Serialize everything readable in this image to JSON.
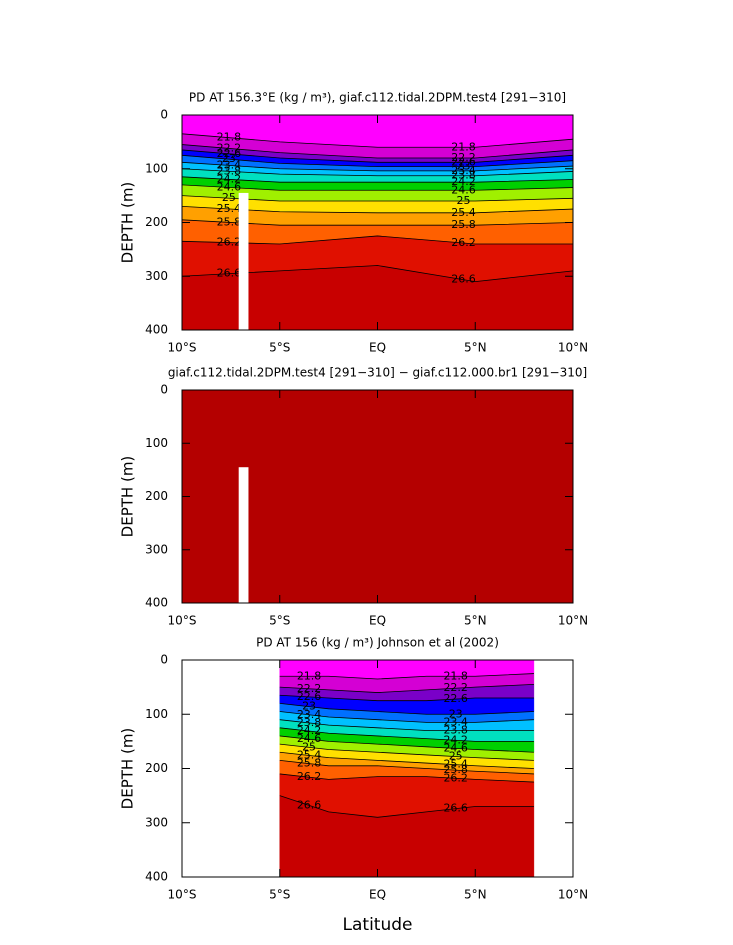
{
  "chart_data": [
    {
      "type": "contour",
      "title": "PD AT 156.3°E (kg / m³), giaf.c112.tidal.2DPM.test4 [291−310]",
      "ylabel": "DEPTH (m)",
      "xlim": [
        -10,
        10
      ],
      "xticks": [
        {
          "value": -10,
          "label": "10°S"
        },
        {
          "value": -5,
          "label": "5°S"
        },
        {
          "value": 0,
          "label": "EQ"
        },
        {
          "value": 5,
          "label": "5°N"
        },
        {
          "value": 10,
          "label": "10°N"
        }
      ],
      "ylim": [
        400,
        0
      ],
      "yticks": [
        0,
        100,
        200,
        300,
        400
      ],
      "x": [
        -10,
        -5,
        0,
        5,
        10
      ],
      "levels": [
        21.8,
        22.2,
        22.6,
        23,
        23.4,
        23.8,
        24.2,
        24.6,
        25,
        25.4,
        25.8,
        26.2,
        26.6
      ],
      "depths": [
        [
          35,
          50,
          60,
          60,
          45
        ],
        [
          55,
          70,
          80,
          80,
          65
        ],
        [
          65,
          80,
          88,
          88,
          75
        ],
        [
          75,
          90,
          96,
          96,
          85
        ],
        [
          88,
          100,
          104,
          104,
          95
        ],
        [
          100,
          110,
          113,
          113,
          105
        ],
        [
          115,
          125,
          125,
          125,
          120
        ],
        [
          130,
          140,
          140,
          140,
          135
        ],
        [
          150,
          160,
          160,
          160,
          155
        ],
        [
          170,
          180,
          182,
          182,
          175
        ],
        [
          195,
          205,
          205,
          205,
          200
        ],
        [
          235,
          240,
          225,
          240,
          240
        ],
        [
          300,
          290,
          280,
          310,
          290
        ]
      ],
      "colors": [
        "#ff00ff",
        "#d400d4",
        "#7a00c8",
        "#0000ff",
        "#0070ff",
        "#00c0ff",
        "#00e0c0",
        "#00d000",
        "#a0f000",
        "#ffe000",
        "#ffa000",
        "#ff6000",
        "#e01000",
        "#c80000"
      ],
      "missing": {
        "x": [
          -7.1,
          -6.6
        ],
        "depth": [
          145,
          400
        ]
      }
    },
    {
      "type": "contour",
      "title": "giaf.c112.tidal.2DPM.test4 [291−310] − giaf.c112.000.br1 [291−310]",
      "ylabel": "DEPTH (m)",
      "xlim": [
        -10,
        10
      ],
      "xticks": [
        {
          "value": -10,
          "label": "10°S"
        },
        {
          "value": -5,
          "label": "5°S"
        },
        {
          "value": 0,
          "label": "EQ"
        },
        {
          "value": 5,
          "label": "5°N"
        },
        {
          "value": 10,
          "label": "10°N"
        }
      ],
      "ylim": [
        400,
        0
      ],
      "yticks": [
        0,
        100,
        200,
        300,
        400
      ],
      "x": [
        -10,
        10
      ],
      "levels": [],
      "depths": [],
      "colors": [
        "#b40000"
      ],
      "missing": {
        "x": [
          -7.1,
          -6.6
        ],
        "depth": [
          145,
          400
        ]
      }
    },
    {
      "type": "contour",
      "title": "PD AT 156 (kg / m³) Johnson et al (2002)",
      "ylabel": "DEPTH (m)",
      "xlabel": "Latitude",
      "xlim": [
        -10,
        10
      ],
      "xticks": [
        {
          "value": -10,
          "label": "10°S"
        },
        {
          "value": -5,
          "label": "5°S"
        },
        {
          "value": 0,
          "label": "EQ"
        },
        {
          "value": 5,
          "label": "5°N"
        },
        {
          "value": 10,
          "label": "10°N"
        }
      ],
      "ylim": [
        400,
        0
      ],
      "yticks": [
        0,
        100,
        200,
        300,
        400
      ],
      "x": [
        -5,
        -2.5,
        0,
        2.5,
        5,
        8
      ],
      "levels": [
        21.8,
        22.2,
        22.6,
        23,
        23.4,
        23.8,
        24.2,
        24.6,
        25,
        25.4,
        25.8,
        26.2,
        26.6
      ],
      "depths": [
        [
          30,
          30,
          35,
          30,
          30,
          25
        ],
        [
          50,
          55,
          60,
          55,
          50,
          45
        ],
        [
          65,
          70,
          75,
          75,
          70,
          70
        ],
        [
          80,
          90,
          95,
          100,
          100,
          95
        ],
        [
          95,
          105,
          110,
          115,
          115,
          110
        ],
        [
          110,
          120,
          125,
          130,
          130,
          130
        ],
        [
          125,
          135,
          140,
          145,
          150,
          150
        ],
        [
          140,
          150,
          155,
          160,
          165,
          170
        ],
        [
          155,
          165,
          170,
          175,
          180,
          185
        ],
        [
          170,
          180,
          185,
          190,
          195,
          200
        ],
        [
          185,
          195,
          195,
          200,
          205,
          210
        ],
        [
          210,
          220,
          215,
          215,
          220,
          225
        ],
        [
          250,
          280,
          290,
          280,
          270,
          270
        ]
      ],
      "colors": [
        "#ff00ff",
        "#d400d4",
        "#7a00c8",
        "#0000ff",
        "#0070ff",
        "#00c0ff",
        "#00e0c0",
        "#00d000",
        "#a0f000",
        "#ffe000",
        "#ffa000",
        "#ff6000",
        "#e01000",
        "#c80000"
      ]
    }
  ]
}
